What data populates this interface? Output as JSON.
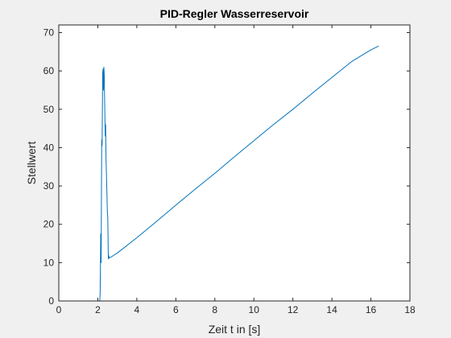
{
  "chart_data": {
    "type": "line",
    "title": "PID-Regler Wasserreservoir",
    "xlabel": "Zeit t in [s]",
    "ylabel": "Stellwert",
    "xlim": [
      0,
      18
    ],
    "ylim": [
      0,
      72
    ],
    "xticks": [
      "0",
      "2",
      "4",
      "6",
      "8",
      "10",
      "12",
      "14",
      "16",
      "18"
    ],
    "yticks": [
      "0",
      "10",
      "20",
      "30",
      "40",
      "50",
      "60",
      "70"
    ],
    "grid": false,
    "line_color": "#0072bd",
    "series": [
      {
        "x": [
          0,
          2.1,
          2.12,
          2.15,
          2.17,
          2.2,
          2.22,
          2.25,
          2.27,
          2.29,
          2.31,
          2.33,
          2.36,
          2.38,
          2.4,
          2.42,
          2.44,
          2.47,
          2.49,
          2.51,
          2.54,
          2.56,
          2.6,
          3.0,
          4.0,
          5.0,
          6.0,
          7.0,
          8.0,
          9.0,
          10.0,
          11.0,
          12.0,
          13.0,
          14.0,
          15.0,
          16.0,
          16.4
        ],
        "y": [
          0,
          0,
          2,
          17.5,
          10,
          42,
          40.5,
          59.5,
          60.5,
          55,
          61,
          59,
          49,
          43,
          46,
          37.5,
          33.5,
          27.5,
          23,
          22,
          11,
          11.8,
          11.2,
          12.5,
          16.5,
          20.7,
          25,
          29.2,
          33.3,
          37.6,
          41.8,
          46,
          50,
          54.2,
          58.3,
          62.4,
          65.5,
          66.5
        ]
      }
    ]
  }
}
